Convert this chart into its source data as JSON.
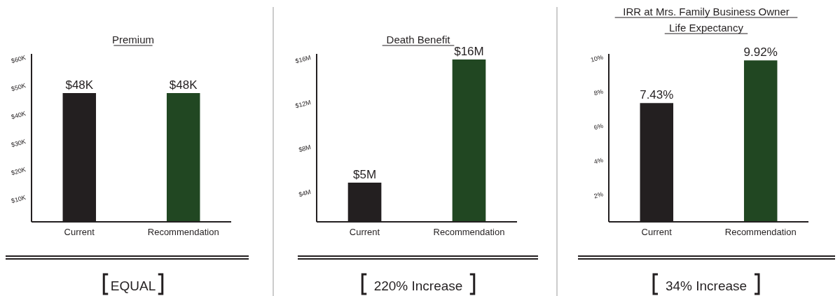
{
  "chart_data": [
    {
      "type": "bar",
      "title": "Premium",
      "categories": [
        "Current",
        "Recommendation"
      ],
      "values": [
        48,
        48
      ],
      "colors": [
        "#231f20",
        "#214722"
      ],
      "value_labels": [
        "$48K",
        "$48K"
      ],
      "ylim": [
        2,
        62
      ],
      "yticks": [
        {
          "value": 10,
          "label": "$10K"
        },
        {
          "value": 20,
          "label": "$20K"
        },
        {
          "value": 30,
          "label": "$30K"
        },
        {
          "value": 40,
          "label": "$40K"
        },
        {
          "value": 50,
          "label": "$50K"
        },
        {
          "value": 60,
          "label": "$60K"
        }
      ],
      "grid": false,
      "annotations": [
        "EQUAL"
      ]
    },
    {
      "type": "bar",
      "title": "Death Benefit",
      "categories": [
        "Current",
        "Recommendation"
      ],
      "values": [
        5,
        16
      ],
      "colors": [
        "#231f20",
        "#214722"
      ],
      "value_labels": [
        "$5M",
        "$16M"
      ],
      "ylim": [
        1.5,
        16.5
      ],
      "yticks": [
        {
          "value": 4,
          "label": "$4M"
        },
        {
          "value": 8,
          "label": "$8M"
        },
        {
          "value": 12,
          "label": "$12M"
        },
        {
          "value": 16,
          "label": "$16M"
        }
      ],
      "grid": false,
      "annotations": [
        "220% Increase"
      ]
    },
    {
      "type": "bar",
      "title": "IRR at Mrs. Family Business Owner Life Expectancy",
      "categories": [
        "Current",
        "Recommendation"
      ],
      "values": [
        7.43,
        9.92
      ],
      "colors": [
        "#231f20",
        "#214722"
      ],
      "value_labels": [
        "7.43%",
        "9.92%"
      ],
      "ylim": [
        0.5,
        10.3
      ],
      "yticks": [
        {
          "value": 2,
          "label": "2%"
        },
        {
          "value": 4,
          "label": "4%"
        },
        {
          "value": 6,
          "label": "6%"
        },
        {
          "value": 8,
          "label": "8%"
        },
        {
          "value": 10,
          "label": "10%"
        }
      ],
      "grid": false,
      "annotations": [
        "34% Increase"
      ]
    }
  ]
}
